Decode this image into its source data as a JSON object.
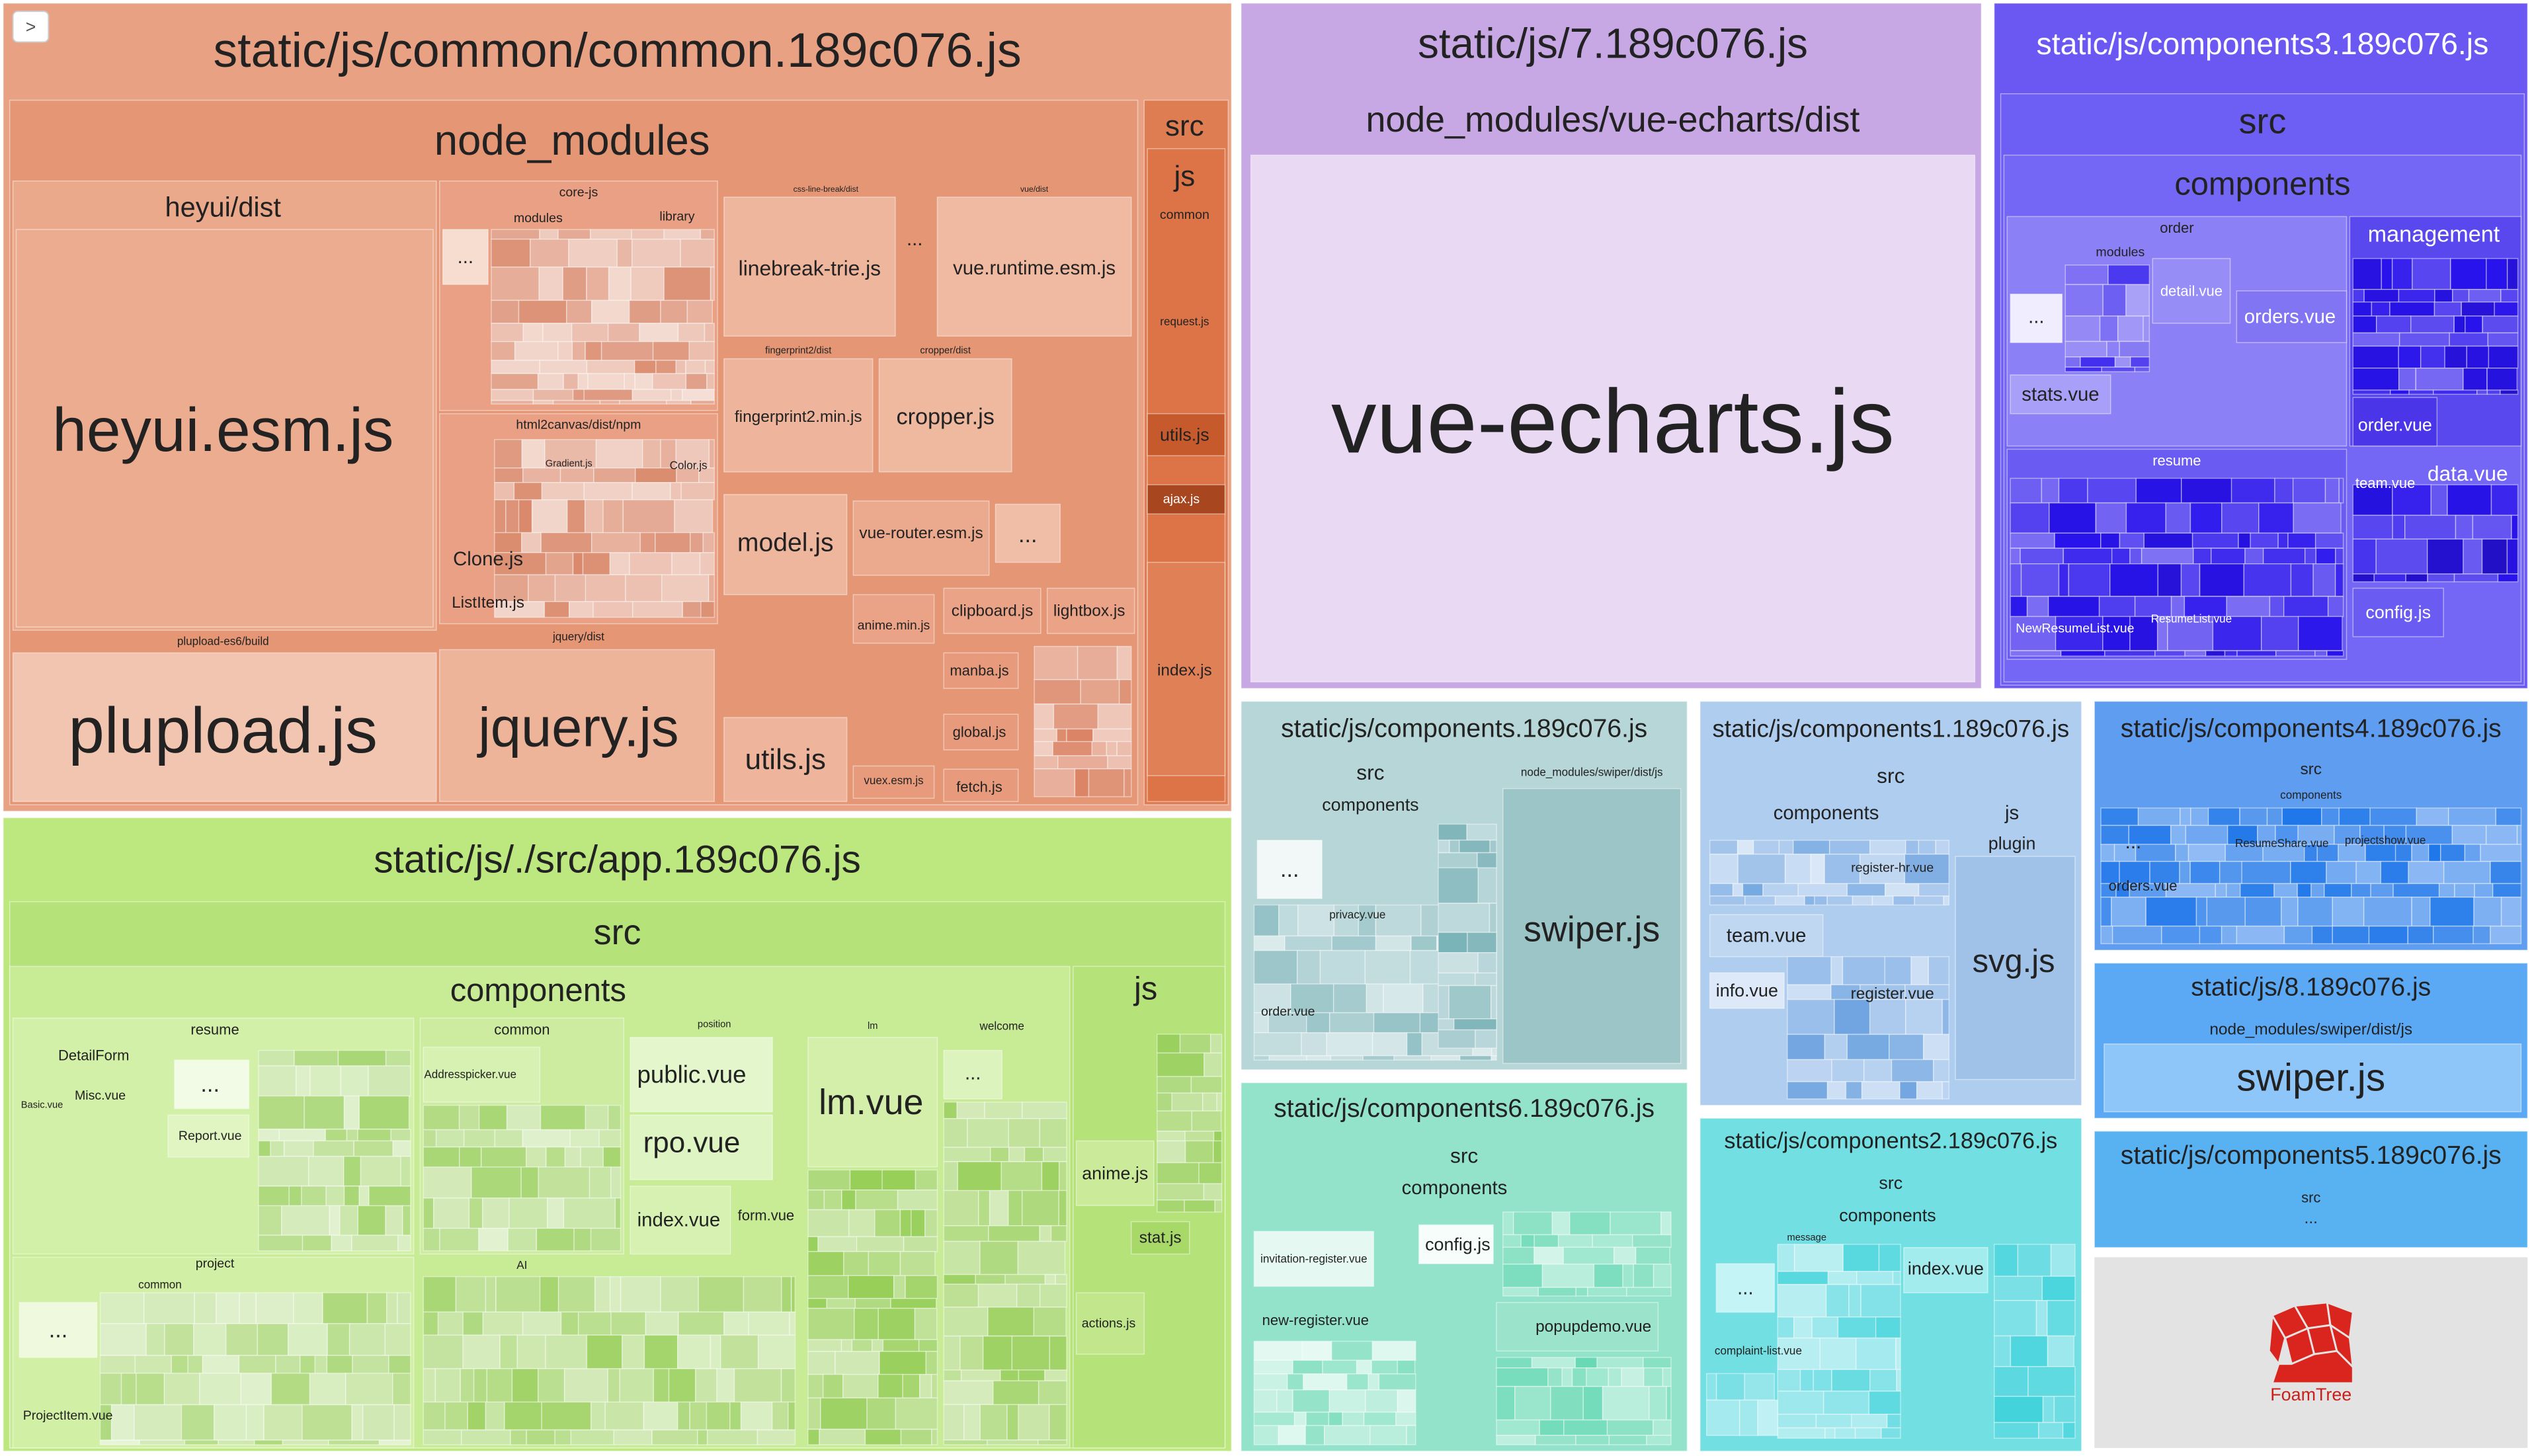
{
  "toggle": ">",
  "nodes": [
    {
      "label": "static/js/common/common.189c076.js"
    },
    {
      "label": "node_modules"
    },
    {
      "label": "heyui/dist"
    },
    {
      "label": "heyui.esm.js"
    },
    {
      "label": "plupload-es6/build"
    },
    {
      "label": "plupload.js"
    },
    {
      "label": "core-js"
    },
    {
      "label": "modules"
    },
    {
      "label": "library"
    },
    {
      "label": "html2canvas/dist/npm"
    },
    {
      "label": "Clone.js"
    },
    {
      "label": "ListItem.js"
    },
    {
      "label": "Gradient.js"
    },
    {
      "label": "Color.js"
    },
    {
      "label": "jquery/dist"
    },
    {
      "label": "jquery.js"
    },
    {
      "label": "css-line-break/dist"
    },
    {
      "label": "linebreak-trie.js"
    },
    {
      "label": "vue/dist"
    },
    {
      "label": "vue.runtime.esm.js"
    },
    {
      "label": "fingerprint2/dist"
    },
    {
      "label": "fingerprint2.min.js"
    },
    {
      "label": "cropper/dist"
    },
    {
      "label": "cropper.js"
    },
    {
      "label": "model.js"
    },
    {
      "label": "vue-router.esm.js"
    },
    {
      "label": "utils.js"
    },
    {
      "label": "anime.min.js"
    },
    {
      "label": "clipboard.js"
    },
    {
      "label": "lightbox.js"
    },
    {
      "label": "global.js"
    },
    {
      "label": "manba.js"
    },
    {
      "label": "fetch.js"
    },
    {
      "label": "vuex.esm.js"
    },
    {
      "label": "src"
    },
    {
      "label": "js"
    },
    {
      "label": "common"
    },
    {
      "label": "request.js"
    },
    {
      "label": "utils.js"
    },
    {
      "label": "ajax.js"
    },
    {
      "label": "index.js"
    },
    {
      "label": "..."
    },
    {
      "label": "..."
    },
    {
      "label": "..."
    },
    {
      "label": "static/js/./src/app.189c076.js"
    },
    {
      "label": "src"
    },
    {
      "label": "components"
    },
    {
      "label": "resume"
    },
    {
      "label": "DetailForm"
    },
    {
      "label": "Misc.vue"
    },
    {
      "label": "Basic.vue"
    },
    {
      "label": "Report.vue"
    },
    {
      "label": "..."
    },
    {
      "label": "project"
    },
    {
      "label": "common"
    },
    {
      "label": "..."
    },
    {
      "label": "ProjectItem.vue"
    },
    {
      "label": "common"
    },
    {
      "label": "Addresspicker.vue"
    },
    {
      "label": "position"
    },
    {
      "label": "public.vue"
    },
    {
      "label": "rpo.vue"
    },
    {
      "label": "index.vue"
    },
    {
      "label": "form.vue"
    },
    {
      "label": "lm"
    },
    {
      "label": "lm.vue"
    },
    {
      "label": "welcome"
    },
    {
      "label": "AI"
    },
    {
      "label": "js"
    },
    {
      "label": "anime.js"
    },
    {
      "label": "stat.js"
    },
    {
      "label": "actions.js"
    },
    {
      "label": "..."
    },
    {
      "label": "static/js/7.189c076.js"
    },
    {
      "label": "node_modules/vue-echarts/dist"
    },
    {
      "label": "vue-echarts.js"
    },
    {
      "label": "static/js/components3.189c076.js"
    },
    {
      "label": "src"
    },
    {
      "label": "components"
    },
    {
      "label": "order"
    },
    {
      "label": "modules"
    },
    {
      "label": "detail.vue"
    },
    {
      "label": "orders.vue"
    },
    {
      "label": "stats.vue"
    },
    {
      "label": "management"
    },
    {
      "label": "order.vue"
    },
    {
      "label": "resume"
    },
    {
      "label": "NewResumeList.vue"
    },
    {
      "label": "ResumeList.vue"
    },
    {
      "label": "team.vue"
    },
    {
      "label": "data.vue"
    },
    {
      "label": "config.js"
    },
    {
      "label": "..."
    },
    {
      "label": "static/js/components.189c076.js"
    },
    {
      "label": "src"
    },
    {
      "label": "components"
    },
    {
      "label": "node_modules/swiper/dist/js"
    },
    {
      "label": "swiper.js"
    },
    {
      "label": "privacy.vue"
    },
    {
      "label": "order.vue"
    },
    {
      "label": "..."
    },
    {
      "label": "static/js/components1.189c076.js"
    },
    {
      "label": "src"
    },
    {
      "label": "components"
    },
    {
      "label": "js"
    },
    {
      "label": "plugin"
    },
    {
      "label": "svg.js"
    },
    {
      "label": "team.vue"
    },
    {
      "label": "info.vue"
    },
    {
      "label": "register-hr.vue"
    },
    {
      "label": "register.vue"
    },
    {
      "label": "static/js/components4.189c076.js"
    },
    {
      "label": "src"
    },
    {
      "label": "components"
    },
    {
      "label": "orders.vue"
    },
    {
      "label": "ResumeShare.vue"
    },
    {
      "label": "projectshow.vue"
    },
    {
      "label": "..."
    },
    {
      "label": "static/js/8.189c076.js"
    },
    {
      "label": "node_modules/swiper/dist/js"
    },
    {
      "label": "swiper.js"
    },
    {
      "label": "static/js/components5.189c076.js"
    },
    {
      "label": "src"
    },
    {
      "label": "..."
    },
    {
      "label": "FoamTree"
    },
    {
      "label": "static/js/components6.189c076.js"
    },
    {
      "label": "src"
    },
    {
      "label": "components"
    },
    {
      "label": "invitation-register.vue"
    },
    {
      "label": "new-register.vue"
    },
    {
      "label": "config.js"
    },
    {
      "label": "popupdemo.vue"
    },
    {
      "label": "static/js/components2.189c076.js"
    },
    {
      "label": "src"
    },
    {
      "label": "components"
    },
    {
      "label": "message"
    },
    {
      "label": "index.vue"
    },
    {
      "label": "complaint-list.vue"
    },
    {
      "label": "..."
    }
  ]
}
